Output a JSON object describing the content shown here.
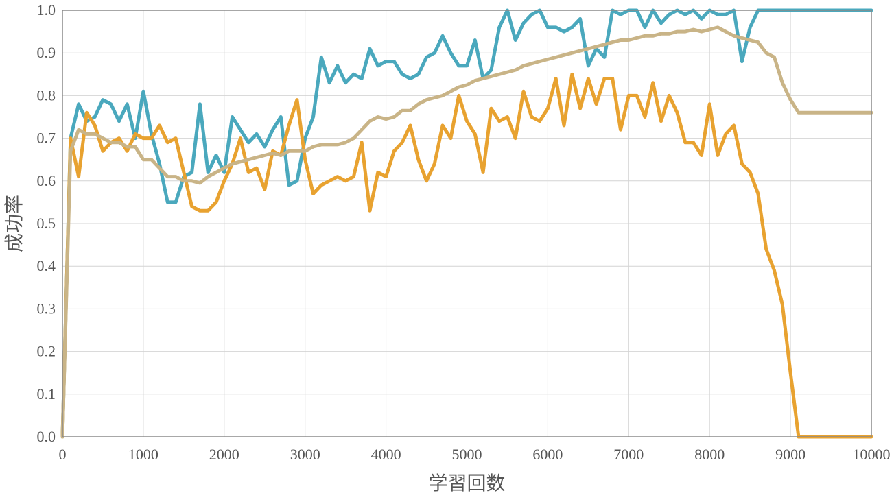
{
  "chart_data": {
    "type": "line",
    "title": "",
    "xlabel": "学習回数",
    "ylabel": "成功率",
    "xlim": [
      0,
      10000
    ],
    "ylim": [
      0,
      1.0
    ],
    "xticks": [
      "0",
      "1000",
      "2000",
      "3000",
      "4000",
      "5000",
      "6000",
      "7000",
      "8000",
      "9000",
      "10000"
    ],
    "yticks": [
      "0.0",
      "0.1",
      "0.2",
      "0.3",
      "0.4",
      "0.5",
      "0.6",
      "0.7",
      "0.8",
      "0.9",
      "1.0"
    ],
    "grid": true,
    "legend": "none",
    "x": [
      0,
      100,
      200,
      300,
      400,
      500,
      600,
      700,
      800,
      900,
      1000,
      1100,
      1200,
      1300,
      1400,
      1500,
      1600,
      1700,
      1800,
      1900,
      2000,
      2100,
      2200,
      2300,
      2400,
      2500,
      2600,
      2700,
      2800,
      2900,
      3000,
      3100,
      3200,
      3300,
      3400,
      3500,
      3600,
      3700,
      3800,
      3900,
      4000,
      4100,
      4200,
      4300,
      4400,
      4500,
      4600,
      4700,
      4800,
      4900,
      5000,
      5100,
      5200,
      5300,
      5400,
      5500,
      5600,
      5700,
      5800,
      5900,
      6000,
      6100,
      6200,
      6300,
      6400,
      6500,
      6600,
      6700,
      6800,
      6900,
      7000,
      7100,
      7200,
      7300,
      7400,
      7500,
      7600,
      7700,
      7800,
      7900,
      8000,
      8100,
      8200,
      8300,
      8400,
      8500,
      8600,
      8700,
      8800,
      8900,
      9000,
      9100,
      9200,
      9300,
      9400,
      9500,
      9600,
      9700,
      9800,
      9900,
      10000
    ],
    "series": [
      {
        "color": "#4aa8bd",
        "values": [
          0,
          0.7,
          0.78,
          0.74,
          0.75,
          0.79,
          0.78,
          0.74,
          0.78,
          0.7,
          0.81,
          0.71,
          0.64,
          0.55,
          0.55,
          0.61,
          0.62,
          0.78,
          0.62,
          0.66,
          0.62,
          0.75,
          0.72,
          0.69,
          0.71,
          0.68,
          0.72,
          0.75,
          0.59,
          0.6,
          0.7,
          0.75,
          0.89,
          0.83,
          0.87,
          0.83,
          0.85,
          0.84,
          0.91,
          0.87,
          0.88,
          0.88,
          0.85,
          0.84,
          0.85,
          0.89,
          0.9,
          0.94,
          0.9,
          0.87,
          0.87,
          0.93,
          0.84,
          0.86,
          0.96,
          1.0,
          0.93,
          0.97,
          0.99,
          1.0,
          0.96,
          0.96,
          0.95,
          0.96,
          0.98,
          0.87,
          0.91,
          0.89,
          1.0,
          0.99,
          1.0,
          1.0,
          0.96,
          1.0,
          0.97,
          0.99,
          1.0,
          0.99,
          1.0,
          0.98,
          1.0,
          0.99,
          0.99,
          1.0,
          0.88,
          0.96,
          1.0,
          1.0,
          1.0,
          1.0,
          1.0,
          1.0,
          1.0,
          1.0,
          1.0,
          1.0,
          1.0,
          1.0,
          1.0,
          1.0,
          1.0
        ]
      },
      {
        "color": "#e8a230",
        "values": [
          0,
          0.7,
          0.61,
          0.76,
          0.73,
          0.67,
          0.69,
          0.7,
          0.67,
          0.71,
          0.7,
          0.7,
          0.73,
          0.69,
          0.7,
          0.62,
          0.54,
          0.53,
          0.53,
          0.55,
          0.6,
          0.64,
          0.7,
          0.62,
          0.63,
          0.58,
          0.67,
          0.66,
          0.73,
          0.79,
          0.65,
          0.57,
          0.59,
          0.6,
          0.61,
          0.6,
          0.61,
          0.69,
          0.53,
          0.62,
          0.61,
          0.67,
          0.69,
          0.73,
          0.65,
          0.6,
          0.64,
          0.73,
          0.7,
          0.8,
          0.74,
          0.71,
          0.62,
          0.77,
          0.74,
          0.75,
          0.7,
          0.81,
          0.75,
          0.74,
          0.77,
          0.84,
          0.73,
          0.85,
          0.77,
          0.84,
          0.78,
          0.84,
          0.84,
          0.72,
          0.8,
          0.8,
          0.75,
          0.83,
          0.74,
          0.8,
          0.76,
          0.69,
          0.69,
          0.66,
          0.78,
          0.66,
          0.71,
          0.73,
          0.64,
          0.62,
          0.57,
          0.44,
          0.39,
          0.31,
          0.15,
          0,
          0,
          0,
          0,
          0,
          0,
          0,
          0,
          0,
          0
        ]
      },
      {
        "color": "#c9b487",
        "values": [
          0,
          0.67,
          0.72,
          0.71,
          0.71,
          0.7,
          0.69,
          0.69,
          0.68,
          0.68,
          0.65,
          0.65,
          0.63,
          0.61,
          0.61,
          0.6,
          0.6,
          0.595,
          0.61,
          0.62,
          0.63,
          0.64,
          0.645,
          0.65,
          0.655,
          0.66,
          0.665,
          0.66,
          0.67,
          0.67,
          0.67,
          0.68,
          0.685,
          0.685,
          0.685,
          0.69,
          0.7,
          0.72,
          0.74,
          0.75,
          0.745,
          0.75,
          0.765,
          0.765,
          0.78,
          0.79,
          0.795,
          0.8,
          0.81,
          0.82,
          0.825,
          0.835,
          0.84,
          0.845,
          0.85,
          0.855,
          0.86,
          0.87,
          0.875,
          0.88,
          0.885,
          0.89,
          0.895,
          0.9,
          0.905,
          0.91,
          0.915,
          0.92,
          0.925,
          0.93,
          0.93,
          0.935,
          0.94,
          0.94,
          0.945,
          0.945,
          0.95,
          0.95,
          0.955,
          0.95,
          0.955,
          0.96,
          0.95,
          0.94,
          0.935,
          0.93,
          0.925,
          0.9,
          0.89,
          0.83,
          0.79,
          0.76,
          0.76,
          0.76,
          0.76,
          0.76,
          0.76,
          0.76,
          0.76,
          0.76,
          0.76
        ]
      }
    ]
  }
}
